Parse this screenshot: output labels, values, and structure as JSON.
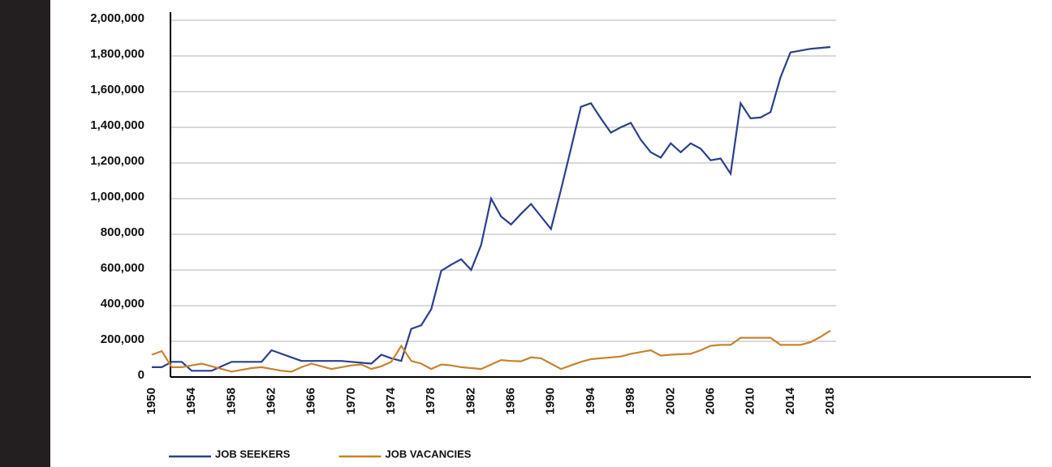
{
  "chart_data": {
    "type": "line",
    "x": [
      1950,
      1951,
      1952,
      1953,
      1954,
      1955,
      1956,
      1957,
      1958,
      1959,
      1960,
      1961,
      1962,
      1963,
      1964,
      1965,
      1966,
      1967,
      1968,
      1969,
      1970,
      1971,
      1972,
      1973,
      1974,
      1975,
      1976,
      1977,
      1978,
      1979,
      1980,
      1981,
      1982,
      1983,
      1984,
      1985,
      1986,
      1987,
      1988,
      1989,
      1990,
      1991,
      1992,
      1993,
      1994,
      1995,
      1996,
      1997,
      1998,
      1999,
      2000,
      2001,
      2002,
      2003,
      2004,
      2005,
      2006,
      2007,
      2008,
      2009,
      2010,
      2011,
      2012,
      2013,
      2014,
      2015,
      2016,
      2017,
      2018
    ],
    "xlim": [
      1950,
      2018
    ],
    "xticks": [
      1950,
      1954,
      1958,
      1962,
      1966,
      1970,
      1974,
      1978,
      1982,
      1986,
      1990,
      1994,
      1998,
      2002,
      2006,
      2010,
      2014,
      2018
    ],
    "ylim": [
      0,
      2000000
    ],
    "yticks": [
      0,
      {
        "value": 200000,
        "label": "200,000"
      },
      {
        "value": 400000,
        "label": "400,000"
      },
      {
        "value": 600000,
        "label": "600,000"
      },
      {
        "value": 800000,
        "label": "800,000"
      },
      {
        "value": 1000000,
        "label": "1,000,000"
      },
      {
        "value": 1200000,
        "label": "1,200,000"
      },
      {
        "value": 1400000,
        "label": "1,400,000"
      },
      {
        "value": 1600000,
        "label": "1,600,000"
      },
      {
        "value": 1800000,
        "label": "1,800,000"
      },
      {
        "value": 2000000,
        "label": "2,000,000"
      }
    ],
    "grid": true,
    "legend": "bottom",
    "series": [
      {
        "name": "JOB SEEKERS",
        "color": "#2b3f8c",
        "values": [
          55000,
          55000,
          85000,
          85000,
          35000,
          35000,
          35000,
          60000,
          85000,
          85000,
          85000,
          85000,
          150000,
          130000,
          110000,
          90000,
          90000,
          90000,
          90000,
          90000,
          85000,
          80000,
          75000,
          125000,
          105000,
          90000,
          270000,
          290000,
          380000,
          595000,
          630000,
          660000,
          600000,
          740000,
          1000000,
          900000,
          855000,
          915000,
          970000,
          900000,
          830000,
          1050000,
          1280000,
          1515000,
          1535000,
          1450000,
          1370000,
          1400000,
          1425000,
          1330000,
          1260000,
          1230000,
          1310000,
          1260000,
          1310000,
          1280000,
          1215000,
          1225000,
          1140000,
          1535000,
          1450000,
          1455000,
          1485000,
          1680000,
          1820000,
          1830000,
          1840000,
          1845000,
          1850000
        ]
      },
      {
        "name": "JOB VACANCIES",
        "color": "#c8822e",
        "values": [
          125000,
          145000,
          55000,
          55000,
          65000,
          75000,
          60000,
          45000,
          30000,
          40000,
          50000,
          55000,
          45000,
          35000,
          30000,
          55000,
          75000,
          60000,
          45000,
          55000,
          65000,
          70000,
          45000,
          60000,
          85000,
          175000,
          90000,
          75000,
          45000,
          70000,
          65000,
          55000,
          50000,
          45000,
          70000,
          95000,
          90000,
          88000,
          110000,
          105000,
          75000,
          45000,
          65000,
          85000,
          100000,
          105000,
          110000,
          115000,
          130000,
          140000,
          150000,
          120000,
          125000,
          128000,
          130000,
          150000,
          175000,
          180000,
          180000,
          220000,
          220000,
          220000,
          220000,
          180000,
          180000,
          180000,
          195000,
          225000,
          260000
        ]
      }
    ]
  }
}
